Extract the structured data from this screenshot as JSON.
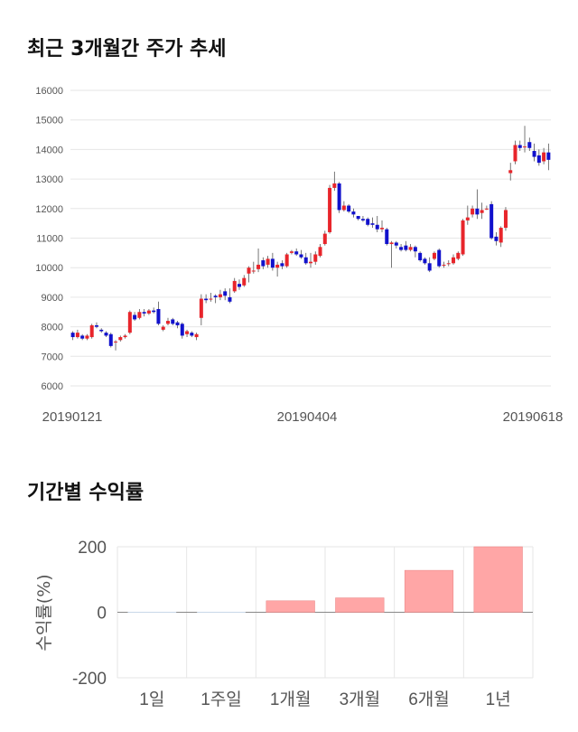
{
  "section1": {
    "title": "최근 3개월간 주가 추세"
  },
  "section2": {
    "title": "기간별 수익률"
  },
  "colors": {
    "up": "#e8252b",
    "down": "#1111cc",
    "bar": "#ffa6a6",
    "bar_stroke": "#e88080",
    "grid": "#e6e6e6"
  },
  "chart_data": [
    {
      "type": "candlestick",
      "title": "최근 3개월간 주가 추세",
      "y_ticks": [
        6000,
        7000,
        8000,
        9000,
        10000,
        11000,
        12000,
        13000,
        14000,
        15000,
        16000
      ],
      "ylim": [
        6000,
        16000
      ],
      "x_ticks": [
        "20190121",
        "20190404",
        "20190618"
      ],
      "grid": true,
      "candles": [
        [
          7800,
          7650,
          7550,
          7850
        ],
        [
          7650,
          7800,
          7600,
          7900
        ],
        [
          7700,
          7600,
          7550,
          7750
        ],
        [
          7600,
          7700,
          7550,
          7750
        ],
        [
          7650,
          8050,
          7600,
          8100
        ],
        [
          8050,
          8000,
          7950,
          8150
        ],
        [
          7900,
          7850,
          7800,
          7950
        ],
        [
          7800,
          7700,
          7650,
          7850
        ],
        [
          7750,
          7350,
          7300,
          7800
        ],
        [
          7500,
          7500,
          7200,
          7550
        ],
        [
          7550,
          7650,
          7500,
          7700
        ],
        [
          7650,
          7700,
          7600,
          7750
        ],
        [
          7800,
          8500,
          7750,
          8550
        ],
        [
          8400,
          8250,
          8200,
          8500
        ],
        [
          8300,
          8500,
          8250,
          8600
        ],
        [
          8500,
          8450,
          8350,
          8600
        ],
        [
          8450,
          8550,
          8400,
          8600
        ],
        [
          8550,
          8500,
          8450,
          8650
        ],
        [
          8600,
          8100,
          8050,
          8850
        ],
        [
          7900,
          8000,
          7850,
          8050
        ],
        [
          8100,
          8200,
          8050,
          8300
        ],
        [
          8250,
          8100,
          8050,
          8300
        ],
        [
          8150,
          8050,
          7950,
          8200
        ],
        [
          8100,
          7700,
          7600,
          8150
        ],
        [
          7750,
          7850,
          7650,
          7900
        ],
        [
          7800,
          7700,
          7650,
          7850
        ],
        [
          7650,
          7750,
          7550,
          7800
        ],
        [
          8300,
          8950,
          8050,
          9100
        ],
        [
          8950,
          8900,
          8800,
          9100
        ],
        [
          8950,
          8950,
          8850,
          9150
        ],
        [
          9050,
          9000,
          8800,
          9100
        ],
        [
          9000,
          9100,
          8900,
          9250
        ],
        [
          9200,
          9050,
          8900,
          9300
        ],
        [
          9000,
          8850,
          8800,
          9300
        ],
        [
          9200,
          9550,
          9150,
          9650
        ],
        [
          9450,
          9350,
          9250,
          9600
        ],
        [
          9400,
          9650,
          9350,
          9750
        ],
        [
          9800,
          10000,
          9500,
          10050
        ],
        [
          9900,
          9900,
          9800,
          10200
        ],
        [
          9950,
          10100,
          9850,
          10650
        ],
        [
          10250,
          10050,
          9950,
          10350
        ],
        [
          10100,
          10300,
          10000,
          10400
        ],
        [
          10300,
          10000,
          9900,
          10500
        ],
        [
          10000,
          10100,
          9700,
          10200
        ],
        [
          10150,
          10050,
          9950,
          10250
        ],
        [
          10050,
          10450,
          10000,
          10500
        ],
        [
          10500,
          10550,
          10450,
          10600
        ],
        [
          10550,
          10450,
          10400,
          10650
        ],
        [
          10450,
          10350,
          10300,
          10600
        ],
        [
          10350,
          10150,
          10100,
          10500
        ],
        [
          10150,
          10200,
          10000,
          10500
        ],
        [
          10200,
          10450,
          10100,
          10550
        ],
        [
          10400,
          10700,
          10350,
          10800
        ],
        [
          10800,
          11150,
          10750,
          11250
        ],
        [
          11200,
          12700,
          11150,
          12800
        ],
        [
          12700,
          12850,
          12600,
          13250
        ],
        [
          12850,
          11950,
          11850,
          12900
        ],
        [
          11950,
          12100,
          11900,
          12250
        ],
        [
          12100,
          11900,
          11850,
          12150
        ],
        [
          11900,
          11800,
          11700,
          12000
        ],
        [
          11750,
          11650,
          11600,
          11750
        ],
        [
          11650,
          11600,
          11550,
          11750
        ],
        [
          11650,
          11450,
          11400,
          11700
        ],
        [
          11500,
          11450,
          11350,
          11700
        ],
        [
          11450,
          11300,
          11200,
          11750
        ],
        [
          11300,
          11350,
          11200,
          11600
        ],
        [
          11300,
          10800,
          10750,
          11350
        ],
        [
          10800,
          10850,
          10000,
          10900
        ],
        [
          10850,
          10750,
          10650,
          10900
        ],
        [
          10700,
          10600,
          10550,
          10800
        ],
        [
          10750,
          10600,
          10550,
          10900
        ],
        [
          10600,
          10700,
          10550,
          10800
        ],
        [
          10700,
          10550,
          10350,
          10750
        ],
        [
          10500,
          10250,
          10200,
          10550
        ],
        [
          10300,
          10150,
          10100,
          10350
        ],
        [
          10150,
          9900,
          9850,
          10350
        ],
        [
          10300,
          10500,
          10250,
          10550
        ],
        [
          10600,
          10050,
          10000,
          10650
        ],
        [
          10100,
          10100,
          10000,
          10200
        ],
        [
          10150,
          10150,
          10050,
          10250
        ],
        [
          10150,
          10350,
          10100,
          10450
        ],
        [
          10300,
          10500,
          10250,
          10550
        ],
        [
          10450,
          11600,
          10400,
          11650
        ],
        [
          11600,
          11700,
          11450,
          12100
        ],
        [
          11800,
          12000,
          11700,
          12100
        ],
        [
          12000,
          11800,
          11650,
          12650
        ],
        [
          11850,
          11950,
          11650,
          12200
        ],
        [
          12000,
          12000,
          11950,
          12100
        ],
        [
          12150,
          11000,
          10950,
          12250
        ],
        [
          11050,
          10900,
          10750,
          11200
        ],
        [
          10850,
          11350,
          10700,
          11400
        ],
        [
          11350,
          11950,
          11250,
          12050
        ],
        [
          13200,
          13300,
          12950,
          13550
        ],
        [
          13600,
          14150,
          13500,
          14300
        ],
        [
          14150,
          14050,
          13950,
          14300
        ],
        [
          14100,
          14100,
          13900,
          14800
        ],
        [
          14250,
          14050,
          13950,
          14400
        ],
        [
          13950,
          13750,
          13600,
          14200
        ],
        [
          13800,
          13550,
          13450,
          14000
        ],
        [
          13600,
          13900,
          13500,
          14050
        ],
        [
          13900,
          13650,
          13300,
          14200
        ]
      ]
    },
    {
      "type": "bar",
      "title": "기간별 수익률",
      "categories": [
        "1일",
        "1주일",
        "1개월",
        "3개월",
        "6개월",
        "1년"
      ],
      "values": [
        0,
        0,
        35,
        44,
        128,
        200
      ],
      "ylim": [
        -200,
        200
      ],
      "y_ticks": [
        200,
        0,
        -200
      ],
      "y_tick_labels": [
        "200",
        "0",
        "-200"
      ],
      "ylabel": "수익률(%)",
      "grid": true
    }
  ]
}
